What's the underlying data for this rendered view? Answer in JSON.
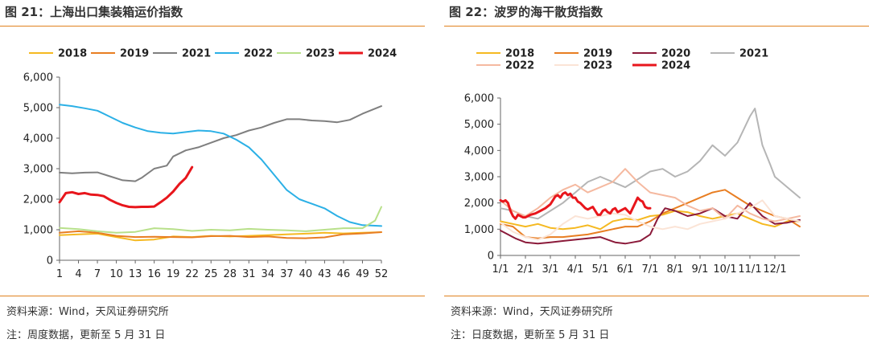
{
  "notes": {
    "source": "资料来源：Wind，天风证券研究所"
  },
  "chart_data": [
    {
      "type": "line",
      "title": "图 21：上海出口集装箱运价指数",
      "note": "注：周度数据，更新至 5 月 31 日",
      "xlabel": "",
      "ylabel": "",
      "xlim": [
        1,
        52
      ],
      "ylim": [
        0,
        6000
      ],
      "yticks": [
        "0",
        "1,000",
        "2,000",
        "3,000",
        "4,000",
        "5,000",
        "6,000"
      ],
      "ytick_values": [
        0,
        1000,
        2000,
        3000,
        4000,
        5000,
        6000
      ],
      "xticks": [
        "1",
        "4",
        "7",
        "10",
        "13",
        "16",
        "19",
        "22",
        "25",
        "28",
        "31",
        "34",
        "37",
        "40",
        "43",
        "46",
        "49",
        "52"
      ],
      "xtick_values": [
        1,
        4,
        7,
        10,
        13,
        16,
        19,
        22,
        25,
        28,
        31,
        34,
        37,
        40,
        43,
        46,
        49,
        52
      ],
      "grid": false,
      "legend_position": "top",
      "series": [
        {
          "name": "2018",
          "color": "#f5b921",
          "x": [
            1,
            4,
            7,
            10,
            13,
            16,
            19,
            22,
            25,
            28,
            31,
            34,
            37,
            40,
            43,
            46,
            49,
            52
          ],
          "values": [
            820,
            850,
            870,
            760,
            650,
            680,
            780,
            760,
            800,
            780,
            800,
            820,
            850,
            870,
            900,
            880,
            900,
            920
          ]
        },
        {
          "name": "2019",
          "color": "#e87e22",
          "x": [
            1,
            4,
            7,
            10,
            13,
            16,
            19,
            22,
            25,
            28,
            31,
            34,
            37,
            40,
            43,
            46,
            49,
            52
          ],
          "values": [
            900,
            950,
            900,
            800,
            760,
            770,
            760,
            750,
            790,
            800,
            760,
            780,
            730,
            720,
            750,
            850,
            880,
            920
          ]
        },
        {
          "name": "2021",
          "color": "#7f7f7f",
          "x": [
            1,
            3,
            5,
            7,
            9,
            11,
            13,
            14,
            16,
            18,
            19,
            21,
            23,
            25,
            27,
            29,
            31,
            33,
            35,
            37,
            39,
            41,
            43,
            45,
            47,
            49,
            52
          ],
          "values": [
            2870,
            2850,
            2870,
            2880,
            2750,
            2620,
            2590,
            2700,
            3000,
            3100,
            3400,
            3600,
            3700,
            3850,
            4000,
            4100,
            4250,
            4350,
            4500,
            4620,
            4620,
            4580,
            4560,
            4520,
            4600,
            4800,
            5050
          ]
        },
        {
          "name": "2022",
          "color": "#2bb0e6",
          "x": [
            1,
            3,
            5,
            7,
            9,
            11,
            13,
            15,
            17,
            19,
            21,
            23,
            25,
            27,
            29,
            31,
            33,
            35,
            37,
            39,
            41,
            43,
            45,
            47,
            49,
            52
          ],
          "values": [
            5100,
            5050,
            4980,
            4900,
            4700,
            4500,
            4350,
            4230,
            4180,
            4150,
            4200,
            4250,
            4230,
            4150,
            3950,
            3700,
            3300,
            2800,
            2300,
            2000,
            1850,
            1700,
            1450,
            1250,
            1150,
            1120
          ]
        },
        {
          "name": "2023",
          "color": "#b8e08a",
          "x": [
            1,
            4,
            7,
            10,
            13,
            16,
            19,
            22,
            25,
            28,
            31,
            34,
            37,
            40,
            43,
            46,
            49,
            51,
            52
          ],
          "values": [
            1060,
            1020,
            950,
            900,
            930,
            1050,
            1020,
            960,
            1000,
            980,
            1030,
            1000,
            980,
            950,
            1000,
            1050,
            1050,
            1300,
            1750
          ]
        },
        {
          "name": "2024",
          "color": "#e8161c",
          "x": [
            1,
            2,
            3,
            4,
            5,
            6,
            7,
            8,
            9,
            10,
            11,
            12,
            13,
            14,
            15,
            16,
            17,
            18,
            19,
            20,
            21,
            22
          ],
          "values": [
            1900,
            2200,
            2230,
            2170,
            2200,
            2150,
            2140,
            2100,
            1980,
            1880,
            1800,
            1750,
            1740,
            1750,
            1750,
            1760,
            1900,
            2050,
            2250,
            2500,
            2700,
            3050
          ]
        }
      ]
    },
    {
      "type": "line",
      "title": "图 22：波罗的海干散货指数",
      "note": "注：日度数据，更新至 5 月 31 日",
      "xlabel": "",
      "ylabel": "",
      "xlim": [
        0,
        12
      ],
      "ylim": [
        0,
        6000
      ],
      "yticks": [
        "0",
        "1,000",
        "2,000",
        "3,000",
        "4,000",
        "5,000",
        "6,000"
      ],
      "ytick_values": [
        0,
        1000,
        2000,
        3000,
        4000,
        5000,
        6000
      ],
      "xticks": [
        "1/1",
        "2/1",
        "3/1",
        "4/1",
        "5/1",
        "6/1",
        "7/1",
        "8/1",
        "9/1",
        "10/1",
        "11/1",
        "12/1"
      ],
      "xtick_values": [
        0,
        1,
        2,
        3,
        4,
        5,
        6,
        7,
        8,
        9,
        10,
        11
      ],
      "grid": false,
      "legend_position": "top",
      "series": [
        {
          "name": "2018",
          "color": "#f5b921",
          "x": [
            0,
            0.5,
            1,
            1.5,
            2,
            2.5,
            3,
            3.5,
            4,
            4.5,
            5,
            5.5,
            6,
            6.5,
            7,
            7.5,
            8,
            8.5,
            9,
            9.5,
            10,
            10.5,
            11,
            11.5,
            12
          ],
          "values": [
            1300,
            1200,
            1100,
            1200,
            1050,
            1000,
            1050,
            1150,
            1000,
            1300,
            1400,
            1350,
            1500,
            1550,
            1700,
            1650,
            1500,
            1400,
            1500,
            1600,
            1400,
            1200,
            1100,
            1300,
            1300
          ]
        },
        {
          "name": "2019",
          "color": "#e87e22",
          "x": [
            0,
            0.5,
            1,
            1.5,
            2,
            2.5,
            3,
            3.5,
            4,
            4.5,
            5,
            5.5,
            6,
            6.5,
            7,
            7.5,
            8,
            8.5,
            9,
            9.5,
            10,
            10.5,
            11,
            11.5,
            12
          ],
          "values": [
            1200,
            1100,
            700,
            650,
            700,
            700,
            750,
            800,
            900,
            1000,
            1100,
            1100,
            1300,
            1600,
            1800,
            2000,
            2200,
            2400,
            2500,
            2200,
            1900,
            1700,
            1500,
            1400,
            1100
          ]
        },
        {
          "name": "2020",
          "color": "#8b1a3a",
          "x": [
            0,
            0.3,
            0.6,
            1,
            1.5,
            2,
            2.5,
            3,
            3.5,
            4,
            4.3,
            4.6,
            5,
            5.3,
            5.6,
            6,
            6.3,
            6.6,
            7,
            7.5,
            8,
            8.5,
            9,
            9.5,
            10,
            10.5,
            11,
            11.5,
            12
          ],
          "values": [
            950,
            800,
            650,
            500,
            450,
            500,
            550,
            600,
            650,
            700,
            600,
            500,
            450,
            500,
            550,
            800,
            1400,
            1800,
            1700,
            1500,
            1600,
            1800,
            1500,
            1400,
            2000,
            1500,
            1200,
            1250,
            1350
          ]
        },
        {
          "name": "2021",
          "color": "#b5b5b5",
          "x": [
            0,
            0.5,
            1,
            1.5,
            2,
            2.5,
            3,
            3.5,
            4,
            4.5,
            5,
            5.5,
            6,
            6.5,
            7,
            7.5,
            8,
            8.5,
            9,
            9.5,
            10,
            10.2,
            10.5,
            10.8,
            11,
            11.5,
            12
          ],
          "values": [
            1800,
            1700,
            1500,
            1400,
            1700,
            2000,
            2400,
            2800,
            3000,
            2800,
            2600,
            2900,
            3200,
            3300,
            3000,
            3200,
            3600,
            4200,
            3800,
            4300,
            5300,
            5600,
            4200,
            3500,
            3000,
            2600,
            2200
          ]
        },
        {
          "name": "2022",
          "color": "#f5b9a0",
          "x": [
            0,
            0.5,
            1,
            1.5,
            2,
            2.5,
            3,
            3.5,
            4,
            4.5,
            5,
            5.5,
            6,
            6.5,
            7,
            7.5,
            8,
            8.5,
            9,
            9.5,
            10,
            10.5,
            11,
            11.5,
            12
          ],
          "values": [
            2100,
            1700,
            1500,
            1800,
            2200,
            2500,
            2700,
            2400,
            2600,
            2800,
            3300,
            2800,
            2400,
            2300,
            2200,
            1900,
            1700,
            1800,
            1400,
            1900,
            1600,
            1400,
            1300,
            1400,
            1500
          ]
        },
        {
          "name": "2023",
          "color": "#fbe4d6",
          "x": [
            0,
            0.5,
            1,
            1.5,
            2,
            2.5,
            3,
            3.5,
            4,
            4.5,
            5,
            5.5,
            6,
            6.5,
            7,
            7.5,
            8,
            8.5,
            9,
            9.5,
            10,
            10.5,
            11,
            11.5,
            12
          ],
          "values": [
            1250,
            900,
            700,
            600,
            800,
            1200,
            1500,
            1400,
            1500,
            1600,
            1550,
            1300,
            1100,
            1000,
            1100,
            1000,
            1200,
            1300,
            1400,
            1600,
            1800,
            2100,
            1500,
            1400,
            1300
          ]
        },
        {
          "name": "2024",
          "color": "#e8161c",
          "x": [
            0,
            0.1,
            0.2,
            0.3,
            0.4,
            0.5,
            0.6,
            0.7,
            0.8,
            0.9,
            1,
            1.2,
            1.4,
            1.6,
            1.8,
            2,
            2.1,
            2.2,
            2.3,
            2.4,
            2.5,
            2.6,
            2.7,
            2.8,
            2.9,
            3,
            3.1,
            3.2,
            3.3,
            3.4,
            3.5,
            3.6,
            3.7,
            3.8,
            3.9,
            4,
            4.1,
            4.2,
            4.3,
            4.4,
            4.5,
            4.6,
            4.7,
            4.8,
            4.9,
            5,
            5.1,
            5.2,
            5.3,
            5.4,
            5.5,
            5.6,
            5.7,
            5.8,
            5.9,
            6
          ],
          "values": [
            2100,
            2050,
            2100,
            2000,
            1700,
            1500,
            1400,
            1550,
            1500,
            1450,
            1450,
            1550,
            1600,
            1700,
            1800,
            1950,
            2100,
            2250,
            2300,
            2200,
            2350,
            2400,
            2300,
            2350,
            2200,
            2200,
            2050,
            2000,
            1900,
            1800,
            1750,
            1800,
            1850,
            1700,
            1550,
            1550,
            1700,
            1750,
            1650,
            1600,
            1750,
            1800,
            1650,
            1700,
            1750,
            1800,
            1700,
            1600,
            1800,
            2000,
            2200,
            2100,
            2050,
            1850,
            1800,
            1800
          ]
        }
      ]
    }
  ]
}
